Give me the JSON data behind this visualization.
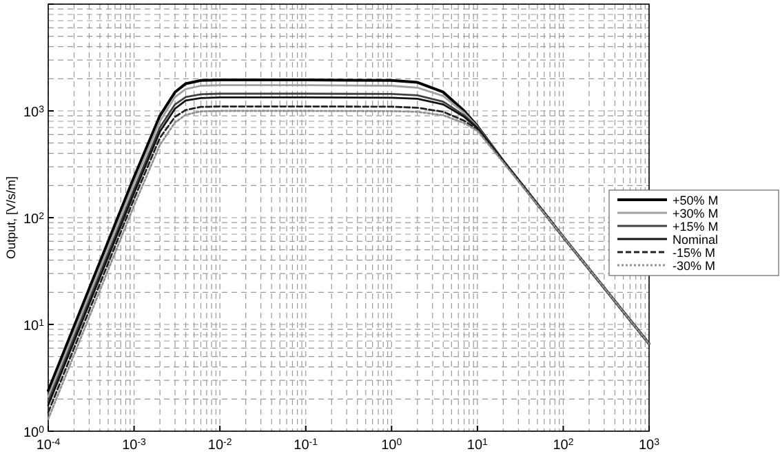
{
  "chart_data": {
    "type": "line",
    "ylabel": "Output, [V/s/m]",
    "log": "xy",
    "grid": true,
    "legend": "right",
    "xlim": [
      0.0001,
      1000
    ],
    "ylim": [
      1,
      10000
    ],
    "xticks": [
      {
        "value": 0.0001,
        "label": "10$^{-4}$"
      },
      {
        "value": 0.001,
        "label": "10$^{-3}$"
      },
      {
        "value": 0.01,
        "label": "10$^{-2}$"
      },
      {
        "value": 0.1,
        "label": "10$^{-1}$"
      },
      {
        "value": 1,
        "label": "10$^{0}$"
      },
      {
        "value": 10,
        "label": "10$^{1}$"
      },
      {
        "value": 100,
        "label": "10$^{2}$"
      },
      {
        "value": 1000,
        "label": "10$^{3}$"
      }
    ],
    "yticks": [
      {
        "value": 1,
        "label": "10$^{0}$"
      },
      {
        "value": 10,
        "label": "10$^{1}$"
      },
      {
        "value": 100,
        "label": "10$^{2}$"
      },
      {
        "value": 1000,
        "label": "10$^{3}$"
      },
      {
        "value": 10000,
        "label": null
      }
    ],
    "x": [
      0.0001,
      0.001,
      0.002,
      0.003,
      0.004,
      0.006,
      0.01,
      0.1,
      1,
      2,
      4,
      7,
      10,
      20,
      100,
      1000
    ],
    "series": [
      {
        "name": "+50% M",
        "color": "#000000",
        "line_style": "solid",
        "values": [
          2.4,
          240,
          900,
          1500,
          1800,
          1930,
          1950,
          1950,
          1930,
          1850,
          1500,
          1000,
          720,
          340,
          66,
          6.6
        ]
      },
      {
        "name": "+30% M",
        "color": "#a0a0a0",
        "line_style": "solid",
        "values": [
          2.1,
          210,
          800,
          1350,
          1600,
          1720,
          1740,
          1740,
          1720,
          1650,
          1380,
          960,
          710,
          340,
          66,
          6.6
        ]
      },
      {
        "name": "+15% M",
        "color": "#404040",
        "line_style": "solid",
        "values": [
          1.9,
          185,
          700,
          1150,
          1350,
          1430,
          1450,
          1450,
          1440,
          1400,
          1220,
          910,
          700,
          340,
          66,
          6.6
        ]
      },
      {
        "name": "Nominal",
        "color": "#111111",
        "line_style": "solid",
        "values": [
          1.75,
          170,
          640,
          1050,
          1250,
          1320,
          1340,
          1340,
          1330,
          1300,
          1150,
          880,
          690,
          340,
          66,
          6.6
        ]
      },
      {
        "name": "-15% M",
        "color": "#222222",
        "line_style": "dashed",
        "values": [
          1.5,
          150,
          560,
          880,
          1020,
          1090,
          1100,
          1100,
          1095,
          1070,
          980,
          810,
          670,
          335,
          66,
          6.6
        ]
      },
      {
        "name": "-30% M",
        "color": "#909090",
        "line_style": "dotted",
        "values": [
          1.3,
          130,
          480,
          780,
          920,
          990,
          1000,
          1000,
          995,
          980,
          910,
          770,
          650,
          330,
          66,
          6.6
        ]
      }
    ]
  }
}
